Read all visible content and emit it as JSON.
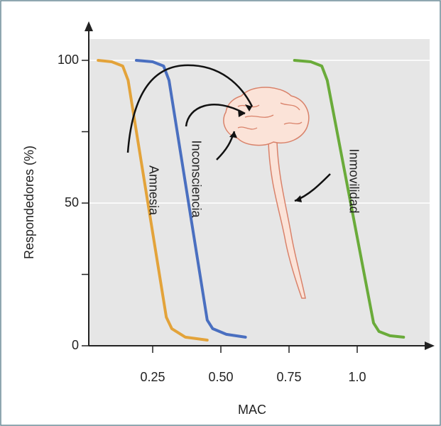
{
  "chart_data": {
    "type": "line",
    "y_label": "Respondedores (%)",
    "x_label": "MAC",
    "xlim": [
      0,
      1.25
    ],
    "ylim": [
      0,
      100
    ],
    "xticks": [
      {
        "value": 0.25,
        "label": "0.25"
      },
      {
        "value": 0.5,
        "label": "0.50"
      },
      {
        "value": 0.75,
        "label": "0.75"
      },
      {
        "value": 1.0,
        "label": "1.0"
      }
    ],
    "yticks": [
      0,
      50,
      100
    ],
    "yminor": [
      25,
      75
    ],
    "grid": true,
    "background": "#e6e6e6",
    "series": [
      {
        "name": "Amnesia",
        "color": "#e3a33a",
        "x": [
          0.05,
          0.1,
          0.14,
          0.16,
          0.3,
          0.32,
          0.37,
          0.45
        ],
        "values": [
          100,
          99.5,
          98,
          93,
          10,
          6,
          3,
          2
        ]
      },
      {
        "name": "Inconsciencia",
        "color": "#4a6fc0",
        "x": [
          0.19,
          0.25,
          0.29,
          0.31,
          0.45,
          0.47,
          0.52,
          0.59
        ],
        "values": [
          100,
          99.5,
          98,
          93,
          9,
          6,
          4,
          3
        ]
      },
      {
        "name": "Inmovilidad",
        "color": "#6aab3a",
        "x": [
          0.77,
          0.83,
          0.87,
          0.89,
          1.06,
          1.08,
          1.12,
          1.17
        ],
        "values": [
          100,
          99.5,
          98,
          93,
          8,
          5,
          3.5,
          3
        ]
      }
    ]
  }
}
